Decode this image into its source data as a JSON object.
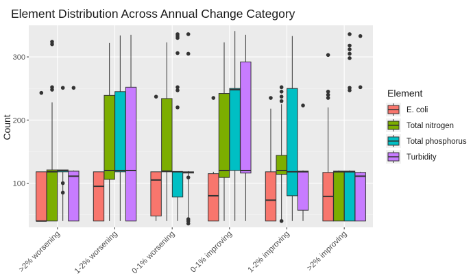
{
  "chart_data": {
    "type": "boxplot",
    "title": "Element Distribution Across Annual Change Category",
    "xlabel": "",
    "ylabel": "Count",
    "ylim": [
      30,
      350
    ],
    "yticks": [
      100,
      200,
      300
    ],
    "grid": true,
    "legend_position": "right",
    "legend_title": "Element",
    "categories": [
      ">2% worsening",
      "1-2% worsening",
      "0-1% worsening",
      "0-1% improving",
      "1-2% improving",
      ">2% improving"
    ],
    "series": [
      {
        "name": "E. coli",
        "color": "#F8766D",
        "boxes": [
          {
            "low": 40,
            "q1": 40,
            "median": 40,
            "q3": 118,
            "high": 118,
            "outliers": [
              243
            ]
          },
          {
            "low": 40,
            "q1": 40,
            "median": 95,
            "q3": 118,
            "high": 118,
            "outliers": []
          },
          {
            "low": 40,
            "q1": 48,
            "median": 105,
            "q3": 118,
            "high": 118,
            "outliers": [
              237
            ]
          },
          {
            "low": 40,
            "q1": 40,
            "median": 80,
            "q3": 115,
            "high": 118,
            "outliers": [
              235
            ]
          },
          {
            "low": 40,
            "q1": 40,
            "median": 73,
            "q3": 118,
            "high": 218,
            "outliers": [
              235
            ]
          },
          {
            "low": 40,
            "q1": 40,
            "median": 79,
            "q3": 117,
            "high": 220,
            "outliers": [
              235,
              240,
              245,
              303
            ]
          }
        ]
      },
      {
        "name": "Total nitrogen",
        "color": "#7CAE00",
        "boxes": [
          {
            "low": 40,
            "q1": 40,
            "median": 118,
            "q3": 121,
            "high": 228,
            "outliers": [
              248,
              252,
              320,
              324
            ]
          },
          {
            "low": 40,
            "q1": 106,
            "median": 120,
            "q3": 239,
            "high": 322,
            "outliers": []
          },
          {
            "low": 40,
            "q1": 118,
            "median": 119,
            "q3": 234,
            "high": 323,
            "outliers": []
          },
          {
            "low": 40,
            "q1": 109,
            "median": 120,
            "q3": 242,
            "high": 323,
            "outliers": []
          },
          {
            "low": 40,
            "q1": 114,
            "median": 120,
            "q3": 144,
            "high": 225,
            "outliers": [
              40,
              230,
              237,
              245,
              252
            ]
          },
          {
            "low": 40,
            "q1": 40,
            "median": 118,
            "q3": 119,
            "high": 120,
            "outliers": []
          }
        ]
      },
      {
        "name": "Total phosphorus",
        "color": "#00BFC4",
        "boxes": [
          {
            "low": 40,
            "q1": 118,
            "median": 120,
            "q3": 121,
            "high": 121,
            "outliers": [
              85,
              100,
              251
            ]
          },
          {
            "low": 40,
            "q1": 118,
            "median": 120,
            "q3": 245,
            "high": 334,
            "outliers": []
          },
          {
            "low": 40,
            "q1": 78,
            "median": 118,
            "q3": 118,
            "high": 118,
            "outliers": [
              220,
              247,
              252,
              306,
              330,
              333,
              336
            ]
          },
          {
            "low": 40,
            "q1": 120,
            "median": 248,
            "q3": 250,
            "high": 341,
            "outliers": []
          },
          {
            "low": 40,
            "q1": 80,
            "median": 118,
            "q3": 250,
            "high": 333,
            "outliers": []
          },
          {
            "low": 40,
            "q1": 40,
            "median": 118,
            "q3": 119,
            "high": 120,
            "outliers": [
              247,
              251,
              298,
              305,
              312,
              318,
              336
            ]
          }
        ]
      },
      {
        "name": "Turbidity",
        "color": "#C77CFF",
        "boxes": [
          {
            "low": 40,
            "q1": 40,
            "median": 111,
            "q3": 119,
            "high": 120,
            "outliers": [
              251
            ]
          },
          {
            "low": 40,
            "q1": 40,
            "median": 120,
            "q3": 252,
            "high": 335,
            "outliers": []
          },
          {
            "low": 40,
            "q1": 116,
            "median": 117,
            "q3": 118,
            "high": 119,
            "outliers": [
              36,
              40,
              43,
              109,
              305,
              336
            ]
          },
          {
            "low": 40,
            "q1": 116,
            "median": 120,
            "q3": 292,
            "high": 335,
            "outliers": []
          },
          {
            "low": 40,
            "q1": 57,
            "median": 118,
            "q3": 119,
            "high": 120,
            "outliers": [
              223
            ]
          },
          {
            "low": 40,
            "q1": 40,
            "median": 111,
            "q3": 117,
            "high": 118,
            "outliers": [
              252,
              333
            ]
          }
        ]
      }
    ]
  }
}
